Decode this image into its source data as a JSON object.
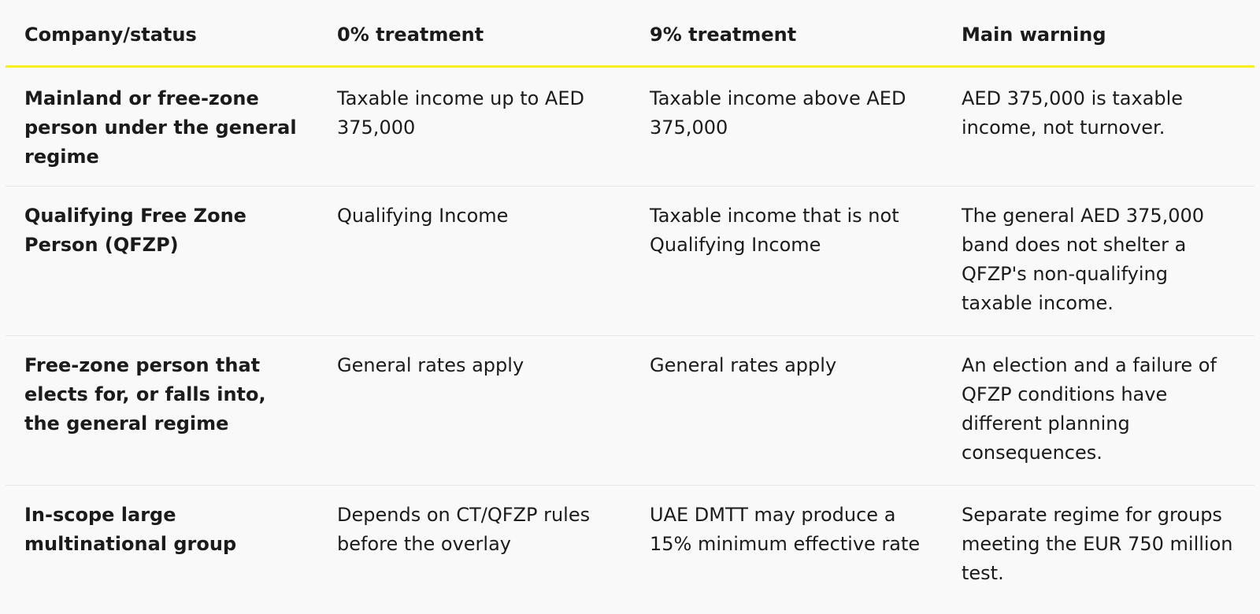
{
  "table": {
    "headers": [
      "Company/status",
      "0% treatment",
      "9% treatment",
      "Main warning"
    ],
    "rows": [
      {
        "status": "Mainland or free-zone person under the general regime",
        "zero": "Taxable income up to AED 375,000",
        "nine": "Taxable income above AED 375,000",
        "warning": "AED 375,000 is taxable income, not turnover."
      },
      {
        "status": "Qualifying Free Zone Person (QFZP)",
        "zero": "Qualifying Income",
        "nine": "Taxable income that is not Qualifying Income",
        "warning": "The general AED 375,000 band does not shelter a QFZP's non-qualifying taxable income."
      },
      {
        "status": "Free-zone person that elects for, or falls into, the general regime",
        "zero": "General rates apply",
        "nine": "General rates apply",
        "warning": "An election and a failure of QFZP conditions have different planning consequences."
      },
      {
        "status": "In-scope large multinational group",
        "zero": "Depends on CT/QFZP rules before the overlay",
        "nine": "UAE DMTT may produce a 15% minimum effective rate",
        "warning": "Separate regime for groups meeting the EUR 750 million test."
      }
    ]
  },
  "colors": {
    "background": "#f9f9f9",
    "header_rule": "#f7ee1c",
    "row_divider": "#e6e6e6",
    "text": "#1b1b1b"
  }
}
